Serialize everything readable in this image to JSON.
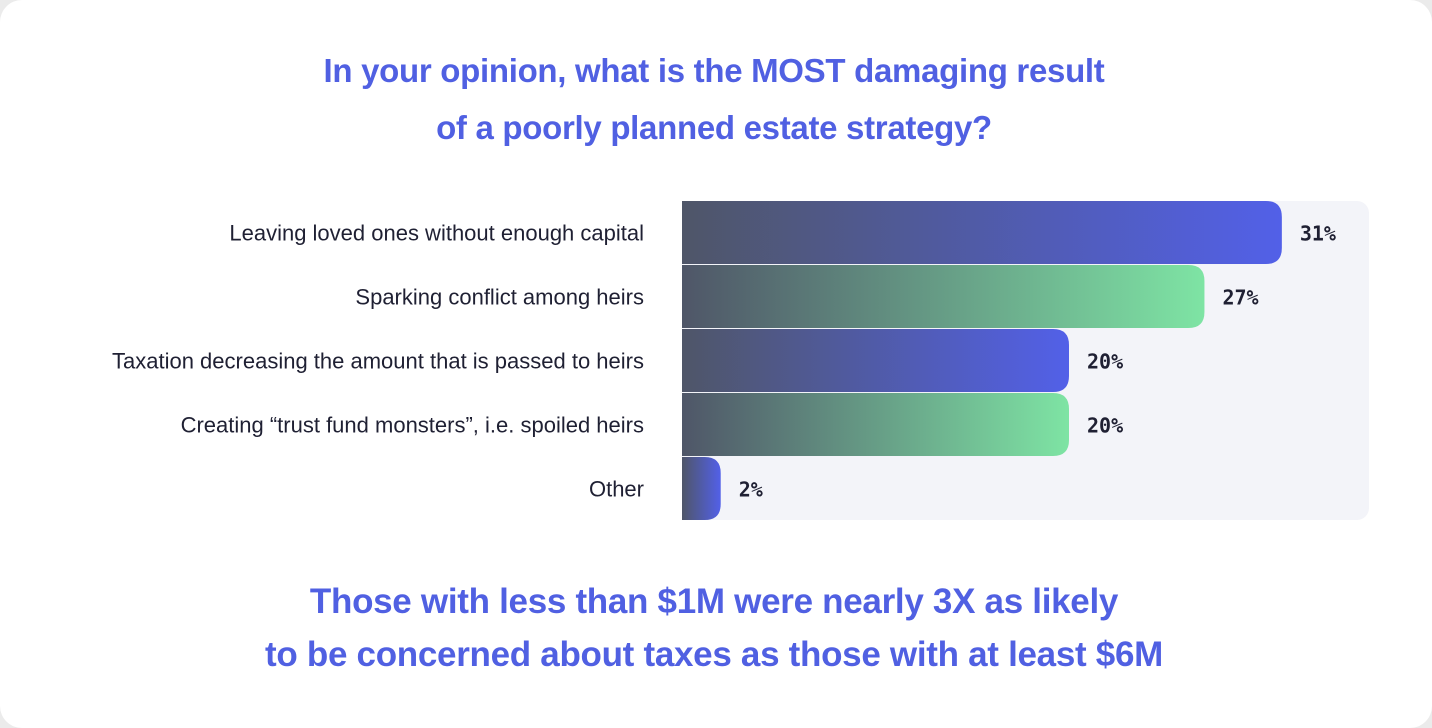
{
  "title_lines": [
    "In your opinion, what is the MOST damaging result",
    "of a poorly planned estate strategy?"
  ],
  "footnote_lines": [
    "Those with less than $1M were nearly 3X as likely",
    "to be concerned about taxes as those with at least $6M"
  ],
  "colors": {
    "title": "#5060e2",
    "panel": "#f3f4f9",
    "bar_dark": "#4f5668",
    "bar_blue": "#5260e8",
    "bar_green": "#7ee4a4"
  },
  "chart_data": {
    "type": "bar",
    "orientation": "horizontal",
    "categories": [
      "Leaving loved ones without enough capital",
      "Sparking conflict among heirs",
      "Taxation decreasing the amount that is passed to heirs",
      "Creating “trust fund monsters”, i.e. spoiled heirs",
      "Other"
    ],
    "values": [
      31,
      27,
      20,
      20,
      2
    ],
    "value_labels": [
      "31%",
      "27%",
      "20%",
      "20%",
      "2%"
    ],
    "bar_colors": [
      "blue",
      "green",
      "blue",
      "green",
      "blue"
    ],
    "unit": "%",
    "xlim": [
      0,
      35
    ],
    "grid": false,
    "legend": "none"
  }
}
